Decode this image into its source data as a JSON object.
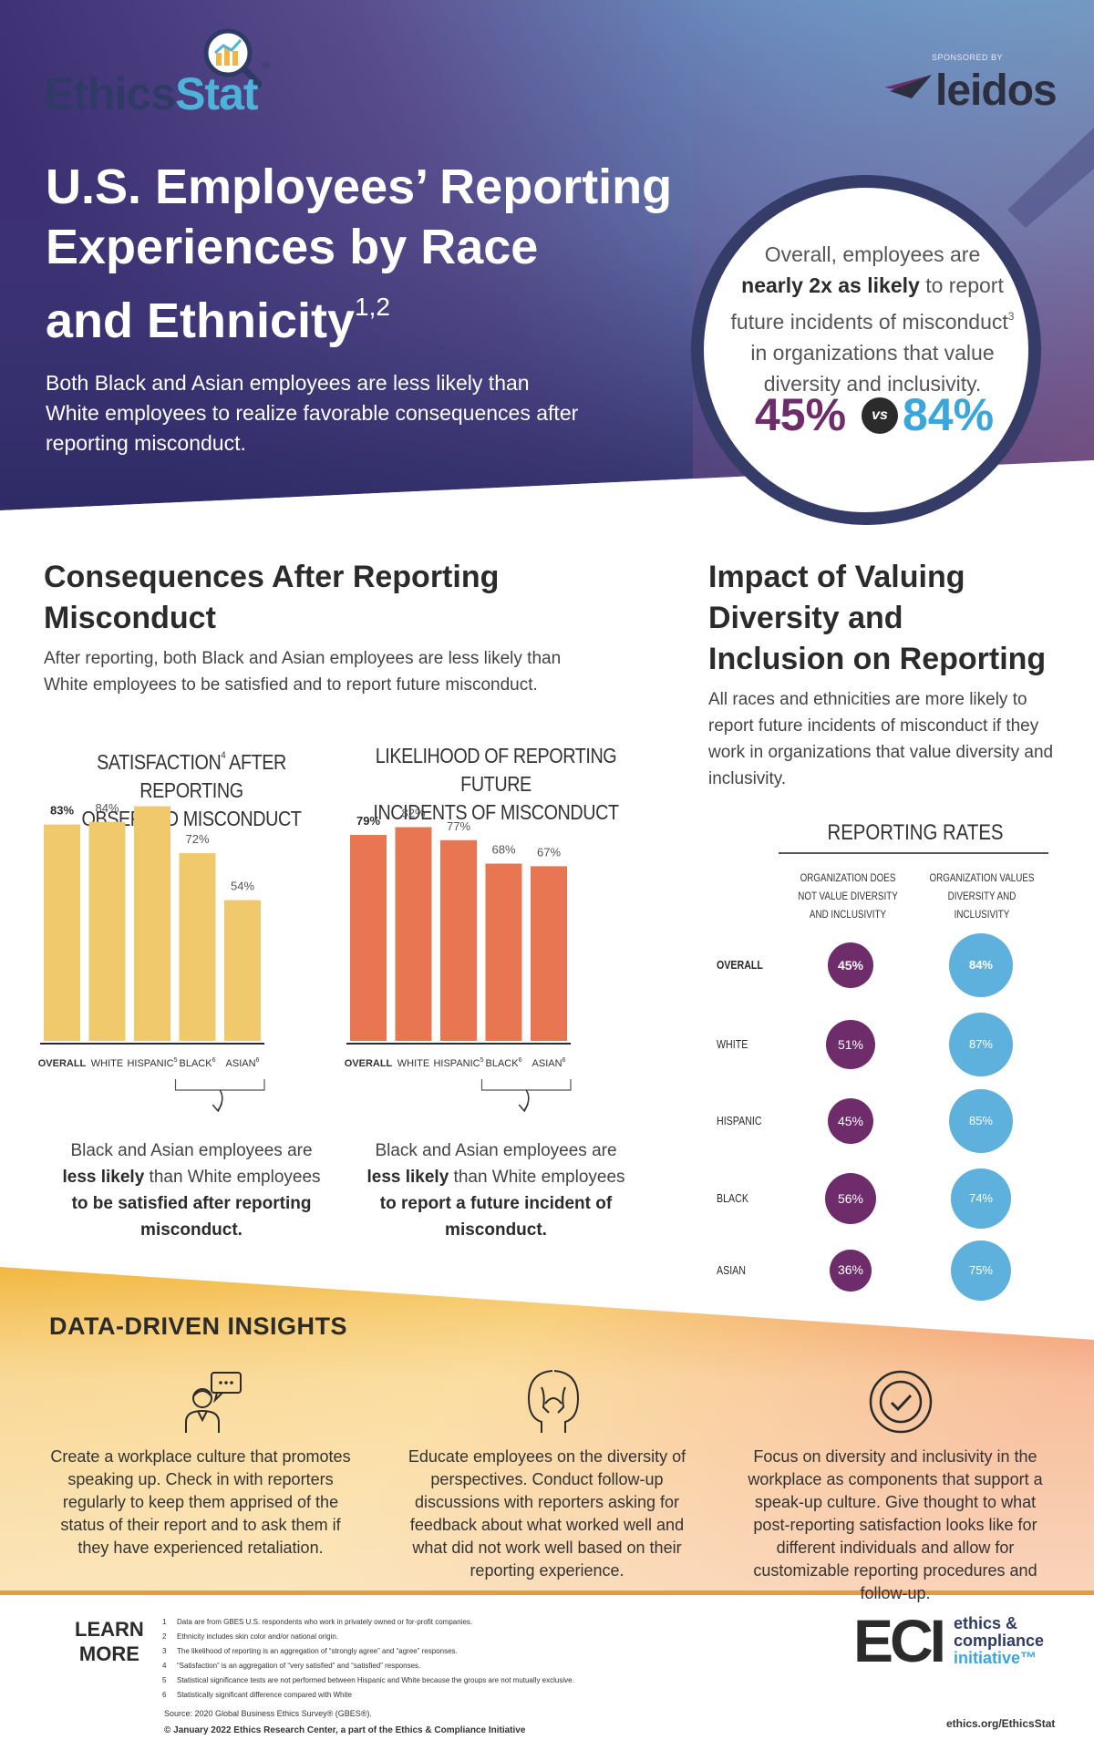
{
  "header": {
    "logo_name_part1": "Ethics",
    "logo_name_part2": "Stat",
    "logo_reg": "®",
    "sponsor_label": "SPONSORED BY",
    "sponsor_name": "leidos",
    "title_line1": "U.S. Employees’ Reporting",
    "title_line2": "Experiences by Race",
    "title_line3": "and Ethnicity",
    "title_footnote": "1,2",
    "subtitle": "Both Black and Asian employees are less likely than White employees to realize favorable consequences after reporting misconduct."
  },
  "highlight": {
    "line1": "Overall, employees are",
    "emphasis": "nearly 2x as likely",
    "line2": "to report",
    "line3": "future incidents of misconduct",
    "footnote": "3",
    "line4": "in organizations that value",
    "line5": "diversity and inclusivity.",
    "stat_a": "45%",
    "vs": "vs",
    "stat_b": "84%"
  },
  "consequences": {
    "title_line1": "Consequences After Reporting",
    "title_line2": "Misconduct",
    "desc_line1": "After reporting, both Black and Asian employees are less likely than",
    "desc_line2": "White employees to be satisfied and to report future misconduct."
  },
  "chart_data": [
    {
      "type": "bar",
      "title": "SATISFACTION AFTER REPORTING OBSERVED MISCONDUCT",
      "title_line1": "SATISFACTION",
      "title_footnote": "4",
      "title_line1_rest": " AFTER REPORTING",
      "title_line2": "OBSERVED MISCONDUCT",
      "categories": [
        "OVERALL",
        "WHITE",
        "HISPANIC",
        "BLACK",
        "ASIAN"
      ],
      "category_footnotes": [
        "",
        "",
        "5",
        "6",
        "6"
      ],
      "values": [
        83,
        84,
        90,
        72,
        54
      ],
      "value_labels": [
        "83%",
        "84%",
        "90%",
        "72%",
        "54%"
      ],
      "ylim": [
        0,
        100
      ],
      "color": "#efc96b",
      "callout_pre": "Black and Asian employees are ",
      "callout_bold1": "less likely",
      "callout_mid": " than White employees ",
      "callout_bold2": "to be satisfied after reporting misconduct."
    },
    {
      "type": "bar",
      "title": "LIKELIHOOD OF REPORTING FUTURE INCIDENTS OF MISCONDUCT",
      "title_line1": "LIKELIHOOD OF REPORTING FUTURE",
      "title_footnote": "",
      "title_line1_rest": "",
      "title_line2": "INCIDENTS OF MISCONDUCT",
      "categories": [
        "OVERALL",
        "WHITE",
        "HISPANIC",
        "BLACK",
        "ASIAN"
      ],
      "category_footnotes": [
        "",
        "",
        "5",
        "6",
        "6"
      ],
      "values": [
        79,
        82,
        77,
        68,
        67
      ],
      "value_labels": [
        "79%",
        "82%",
        "77%",
        "68%",
        "67%"
      ],
      "ylim": [
        0,
        100
      ],
      "color": "#e87653",
      "callout_pre": "Black and Asian employees are ",
      "callout_bold1": "less likely",
      "callout_mid": " than White employees ",
      "callout_bold2": "to report a future incident of misconduct."
    },
    {
      "type": "bubble",
      "title": "REPORTING RATES",
      "series": [
        {
          "name": "ORGANIZATION DOES NOT VALUE DIVERSITY AND INCLUSIVITY",
          "values": [
            45,
            51,
            45,
            56,
            36
          ],
          "color": "#6e2c6b"
        },
        {
          "name": "ORGANIZATION VALUES DIVERSITY AND INCLUSIVITY",
          "values": [
            84,
            87,
            85,
            74,
            75
          ],
          "color": "#5eb1dc"
        }
      ],
      "categories": [
        "OVERALL",
        "WHITE",
        "HISPANIC",
        "BLACK",
        "ASIAN"
      ]
    }
  ],
  "impact": {
    "title_line1": "Impact of Valuing",
    "title_line2": "Diversity and",
    "title_line3": "Inclusion on Reporting",
    "desc": "All races and ethnicities are more likely to report future incidents of misconduct if they work in organizations that value diversity and inclusivity.",
    "rates_title": "REPORTING RATES",
    "col1_head": "Organization does not value diversity and inclusivity",
    "col2_head": "Organization values diversity and inclusivity"
  },
  "insights": {
    "title": "DATA-DRIVEN INSIGHTS",
    "items": [
      {
        "icon": "person-speech-icon",
        "text": "Create a workplace culture that promotes speaking up. Check in with reporters regularly to keep them apprised of the status of their report and to ask them if they have experienced retaliation."
      },
      {
        "icon": "head-profiles-icon",
        "text": "Educate employees on the diversity of perspectives. Conduct follow-up discussions with reporters asking for feedback about what worked well and what did not work well based on their reporting experience."
      },
      {
        "icon": "check-circle-icon",
        "text": "Focus on diversity and inclusivity in the workplace as components that support a speak-up culture. Give thought to what post-reporting satisfaction looks like for different individuals and allow for customizable reporting procedures and follow-up."
      }
    ]
  },
  "footer": {
    "learn_line1": "LEARN",
    "learn_line2": "MORE",
    "footnotes": [
      {
        "n": "1",
        "text": "Data are from GBES U.S. respondents who work in privately owned or for-profit companies."
      },
      {
        "n": "2",
        "text": "Ethnicity includes skin color and/or national origin."
      },
      {
        "n": "3",
        "text": "The likelihood of reporting is an aggregation of “strongly agree” and “agree” responses."
      },
      {
        "n": "4",
        "text": "“Satisfaction” is an aggregation of “very satisfied” and “satisfied” responses."
      },
      {
        "n": "5",
        "text": "Statistical significance tests are not performed between Hispanic and White because the groups are not mutually exclusive."
      },
      {
        "n": "6",
        "text": "Statistically significant difference compared with White"
      }
    ],
    "source": "Source: 2020 Global Business Ethics Survey® (GBES®).",
    "copyright": "© January 2022 Ethics Research Center, a part of the Ethics & Compliance Initiative",
    "eci_mark": "ECI",
    "eci_line1": "ethics &",
    "eci_line2": "compliance",
    "eci_line3": "initiative™",
    "url": "ethics.org/EthicsStat"
  },
  "colors": {
    "hero_dark": "#2e2c63",
    "hero_mid": "#6a4a8a",
    "hero_light": "#5fb7d9",
    "purple": "#6e2c6b",
    "blue": "#3aa6dc",
    "yellow": "#efc96b",
    "orange": "#e87653"
  }
}
